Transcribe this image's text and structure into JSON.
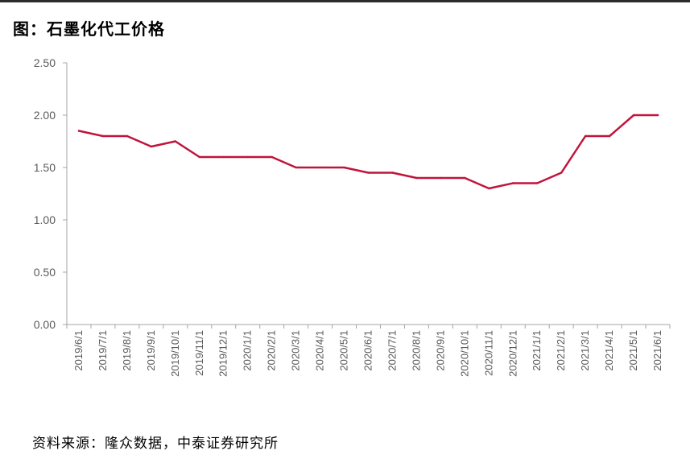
{
  "figure": {
    "title": "图：石墨化代工价格",
    "source": "资料来源：隆众数据，中泰证券研究所"
  },
  "colors": {
    "line": "#C0143C",
    "axis": "#a6a6a6",
    "text": "#595959"
  },
  "chart_data": {
    "type": "line",
    "title": "",
    "xlabel": "",
    "ylabel": "",
    "ylim": [
      0,
      2.5
    ],
    "yticks": [
      "0.00",
      "0.50",
      "1.00",
      "1.50",
      "2.00",
      "2.50"
    ],
    "grid": false,
    "legend": "none",
    "categories": [
      "2019/6/1",
      "2019/7/1",
      "2019/8/1",
      "2019/9/1",
      "2019/10/1",
      "2019/11/1",
      "2019/12/1",
      "2020/1/1",
      "2020/2/1",
      "2020/3/1",
      "2020/4/1",
      "2020/5/1",
      "2020/6/1",
      "2020/7/1",
      "2020/8/1",
      "2020/9/1",
      "2020/10/1",
      "2020/11/1",
      "2020/12/1",
      "2021/1/1",
      "2021/2/1",
      "2021/3/1",
      "2021/4/1",
      "2021/5/1",
      "2021/6/1"
    ],
    "series": [
      {
        "values": [
          1.85,
          1.8,
          1.8,
          1.7,
          1.75,
          1.6,
          1.6,
          1.6,
          1.6,
          1.5,
          1.5,
          1.5,
          1.45,
          1.45,
          1.4,
          1.4,
          1.4,
          1.3,
          1.35,
          1.35,
          1.45,
          1.8,
          1.8,
          2.0,
          2.0
        ]
      }
    ]
  }
}
